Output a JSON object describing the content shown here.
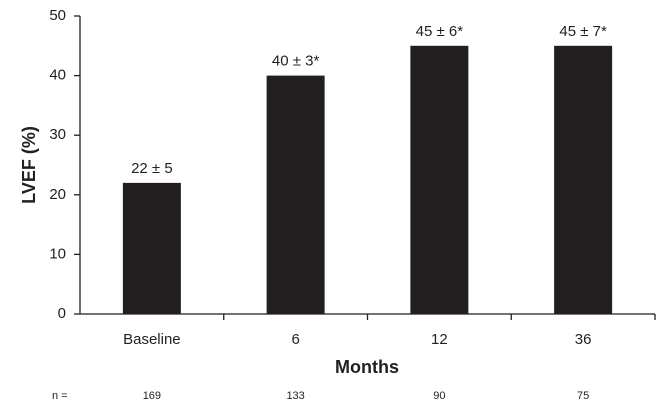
{
  "chart_data": {
    "type": "bar",
    "categories": [
      "Baseline",
      "6",
      "12",
      "36"
    ],
    "values": [
      22,
      40,
      45,
      45
    ],
    "value_labels": [
      "22 ± 5",
      "40 ± 3*",
      "45 ± 6*",
      "45 ± 7*"
    ],
    "color": "#231f20",
    "x_label": "Months",
    "y_label": "LVEF (%)",
    "ylim": [
      0,
      50
    ],
    "yticks": [
      0,
      10,
      20,
      30,
      40,
      50
    ],
    "grid": false,
    "sample_size_label": "n =",
    "sample_sizes": [
      169,
      133,
      90,
      75
    ]
  }
}
